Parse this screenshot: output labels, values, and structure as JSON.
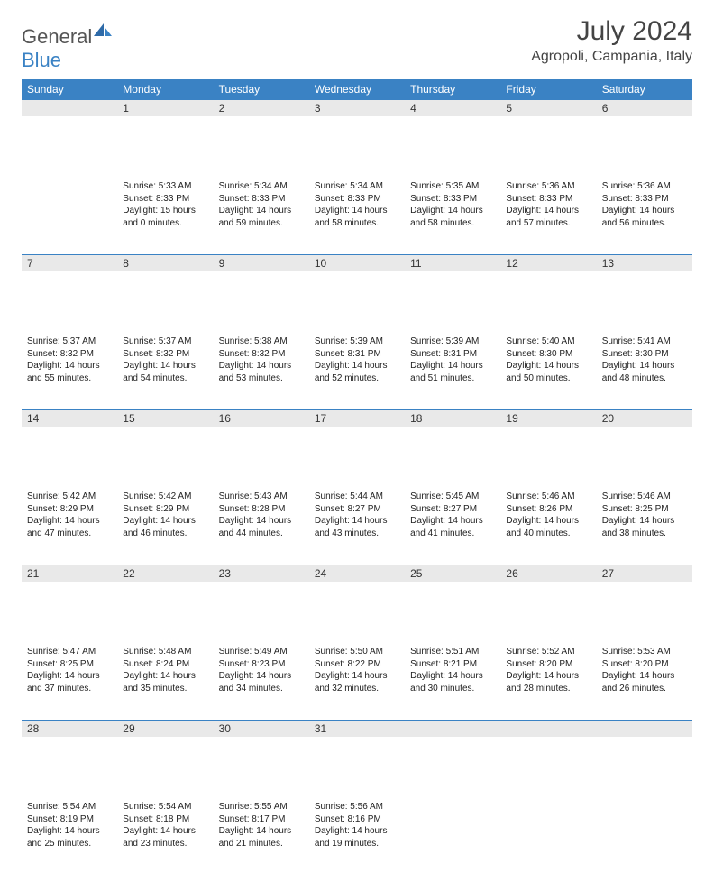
{
  "brand": {
    "part1": "General",
    "part2": "Blue"
  },
  "title": "July 2024",
  "location": "Agropoli, Campania, Italy",
  "colors": {
    "header_bg": "#3a82c4",
    "daynum_bg": "#e9e9e9",
    "text": "#333333",
    "page_bg": "#ffffff"
  },
  "weekdays": [
    "Sunday",
    "Monday",
    "Tuesday",
    "Wednesday",
    "Thursday",
    "Friday",
    "Saturday"
  ],
  "weeks": [
    [
      null,
      {
        "n": "1",
        "sr": "5:33 AM",
        "ss": "8:33 PM",
        "dl": "15 hours and 0 minutes."
      },
      {
        "n": "2",
        "sr": "5:34 AM",
        "ss": "8:33 PM",
        "dl": "14 hours and 59 minutes."
      },
      {
        "n": "3",
        "sr": "5:34 AM",
        "ss": "8:33 PM",
        "dl": "14 hours and 58 minutes."
      },
      {
        "n": "4",
        "sr": "5:35 AM",
        "ss": "8:33 PM",
        "dl": "14 hours and 58 minutes."
      },
      {
        "n": "5",
        "sr": "5:36 AM",
        "ss": "8:33 PM",
        "dl": "14 hours and 57 minutes."
      },
      {
        "n": "6",
        "sr": "5:36 AM",
        "ss": "8:33 PM",
        "dl": "14 hours and 56 minutes."
      }
    ],
    [
      {
        "n": "7",
        "sr": "5:37 AM",
        "ss": "8:32 PM",
        "dl": "14 hours and 55 minutes."
      },
      {
        "n": "8",
        "sr": "5:37 AM",
        "ss": "8:32 PM",
        "dl": "14 hours and 54 minutes."
      },
      {
        "n": "9",
        "sr": "5:38 AM",
        "ss": "8:32 PM",
        "dl": "14 hours and 53 minutes."
      },
      {
        "n": "10",
        "sr": "5:39 AM",
        "ss": "8:31 PM",
        "dl": "14 hours and 52 minutes."
      },
      {
        "n": "11",
        "sr": "5:39 AM",
        "ss": "8:31 PM",
        "dl": "14 hours and 51 minutes."
      },
      {
        "n": "12",
        "sr": "5:40 AM",
        "ss": "8:30 PM",
        "dl": "14 hours and 50 minutes."
      },
      {
        "n": "13",
        "sr": "5:41 AM",
        "ss": "8:30 PM",
        "dl": "14 hours and 48 minutes."
      }
    ],
    [
      {
        "n": "14",
        "sr": "5:42 AM",
        "ss": "8:29 PM",
        "dl": "14 hours and 47 minutes."
      },
      {
        "n": "15",
        "sr": "5:42 AM",
        "ss": "8:29 PM",
        "dl": "14 hours and 46 minutes."
      },
      {
        "n": "16",
        "sr": "5:43 AM",
        "ss": "8:28 PM",
        "dl": "14 hours and 44 minutes."
      },
      {
        "n": "17",
        "sr": "5:44 AM",
        "ss": "8:27 PM",
        "dl": "14 hours and 43 minutes."
      },
      {
        "n": "18",
        "sr": "5:45 AM",
        "ss": "8:27 PM",
        "dl": "14 hours and 41 minutes."
      },
      {
        "n": "19",
        "sr": "5:46 AM",
        "ss": "8:26 PM",
        "dl": "14 hours and 40 minutes."
      },
      {
        "n": "20",
        "sr": "5:46 AM",
        "ss": "8:25 PM",
        "dl": "14 hours and 38 minutes."
      }
    ],
    [
      {
        "n": "21",
        "sr": "5:47 AM",
        "ss": "8:25 PM",
        "dl": "14 hours and 37 minutes."
      },
      {
        "n": "22",
        "sr": "5:48 AM",
        "ss": "8:24 PM",
        "dl": "14 hours and 35 minutes."
      },
      {
        "n": "23",
        "sr": "5:49 AM",
        "ss": "8:23 PM",
        "dl": "14 hours and 34 minutes."
      },
      {
        "n": "24",
        "sr": "5:50 AM",
        "ss": "8:22 PM",
        "dl": "14 hours and 32 minutes."
      },
      {
        "n": "25",
        "sr": "5:51 AM",
        "ss": "8:21 PM",
        "dl": "14 hours and 30 minutes."
      },
      {
        "n": "26",
        "sr": "5:52 AM",
        "ss": "8:20 PM",
        "dl": "14 hours and 28 minutes."
      },
      {
        "n": "27",
        "sr": "5:53 AM",
        "ss": "8:20 PM",
        "dl": "14 hours and 26 minutes."
      }
    ],
    [
      {
        "n": "28",
        "sr": "5:54 AM",
        "ss": "8:19 PM",
        "dl": "14 hours and 25 minutes."
      },
      {
        "n": "29",
        "sr": "5:54 AM",
        "ss": "8:18 PM",
        "dl": "14 hours and 23 minutes."
      },
      {
        "n": "30",
        "sr": "5:55 AM",
        "ss": "8:17 PM",
        "dl": "14 hours and 21 minutes."
      },
      {
        "n": "31",
        "sr": "5:56 AM",
        "ss": "8:16 PM",
        "dl": "14 hours and 19 minutes."
      },
      null,
      null,
      null
    ]
  ],
  "labels": {
    "sunrise": "Sunrise:",
    "sunset": "Sunset:",
    "daylight": "Daylight:"
  }
}
